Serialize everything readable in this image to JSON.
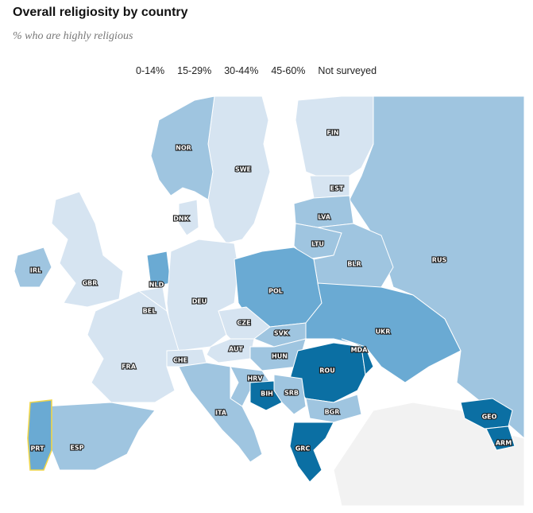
{
  "title": "Overall religiosity by country",
  "subtitle": "% who are highly religious",
  "legend": [
    {
      "label": "0-14%",
      "color": "#d6e4f1"
    },
    {
      "label": "15-29%",
      "color": "#9fc5e0"
    },
    {
      "label": "30-44%",
      "color": "#6aaad3"
    },
    {
      "label": "45-60%",
      "color": "#0b6fa3"
    },
    {
      "label": "Not surveyed",
      "color": "#f2f2f2"
    }
  ],
  "countries": {
    "NOR": "NOR",
    "SWE": "SWE",
    "FIN": "FIN",
    "EST": "EST",
    "LVA": "LVA",
    "LTU": "LTU",
    "DNK": "DNK",
    "IRL": "IRL",
    "GBR": "GBR",
    "NLD": "NLD",
    "BEL": "BEL",
    "DEU": "DEU",
    "POL": "POL",
    "BLR": "BLR",
    "RUS": "RUS",
    "CZE": "CZE",
    "SVK": "SVK",
    "UKR": "UKR",
    "AUT": "AUT",
    "HUN": "HUN",
    "FRA": "FRA",
    "CHE": "CHE",
    "MDA": "MDA",
    "ROU": "ROU",
    "HRV": "HRV",
    "BIH": "BIH",
    "SRB": "SRB",
    "ITA": "ITA",
    "BGR": "BGR",
    "GEO": "GEO",
    "ARM": "ARM",
    "PRT": "PRT",
    "ESP": "ESP",
    "GRC": "GRC"
  }
}
